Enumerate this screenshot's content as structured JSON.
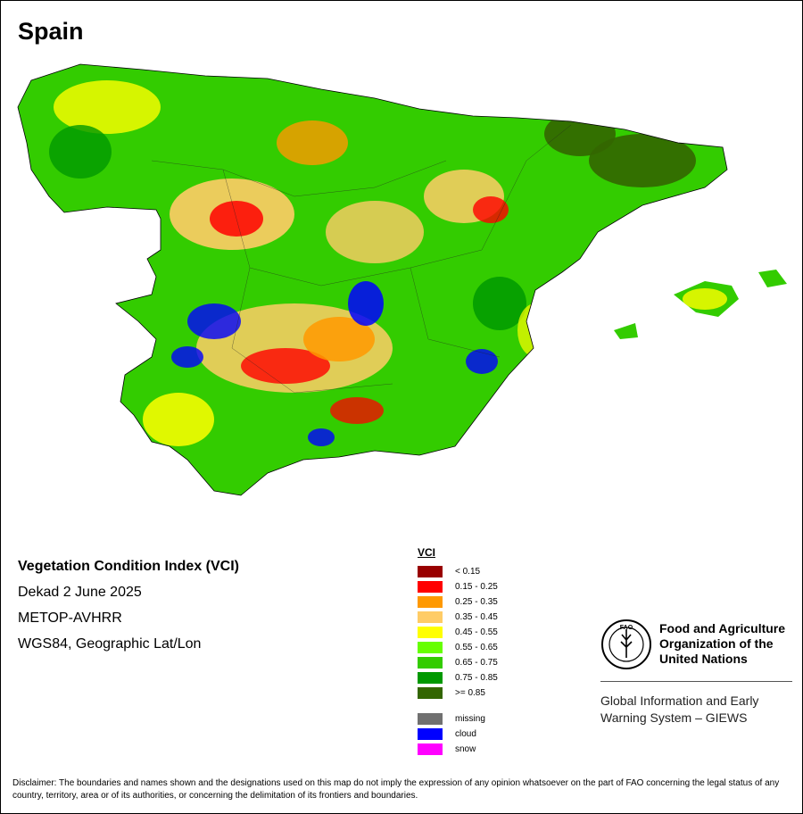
{
  "map": {
    "country": "Spain",
    "product": "Vegetation Condition Index (VCI)",
    "period": "Dekad 2 June 2025",
    "sensor": "METOP-AVHRR",
    "projection": "WGS84, Geographic Lat/Lon"
  },
  "legend": {
    "title": "VCI",
    "classes": [
      {
        "label": "< 0.15",
        "color": "#990000"
      },
      {
        "label": "0.15 - 0.25",
        "color": "#ff0000"
      },
      {
        "label": "0.25 - 0.35",
        "color": "#ff9900"
      },
      {
        "label": "0.35 - 0.45",
        "color": "#ffcc66"
      },
      {
        "label": "0.45 - 0.55",
        "color": "#ffff00"
      },
      {
        "label": "0.55 - 0.65",
        "color": "#66ff00"
      },
      {
        "label": "0.65 - 0.75",
        "color": "#33cc00"
      },
      {
        "label": "0.75 - 0.85",
        "color": "#009900"
      },
      {
        "label": ">= 0.85",
        "color": "#336600"
      }
    ],
    "special": [
      {
        "label": "missing",
        "color": "#707070"
      },
      {
        "label": "cloud",
        "color": "#0000ff"
      },
      {
        "label": "snow",
        "color": "#ff00ff"
      }
    ]
  },
  "org": {
    "line1": "Food and Agriculture",
    "line2": "Organization of the",
    "line3": "United Nations",
    "logo_text": "FAO",
    "logo_motto": "FIAT PANIS",
    "system_line1": "Global Information and Early",
    "system_line2": "Warning System – GIEWS"
  },
  "disclaimer": "Disclaimer: The boundaries and names shown and the designations used on this map do not imply the expression of any opinion whatsoever on the part of FAO concerning the legal status of any country, territory, area or of its authorities, or concerning the delimitation of its frontiers and boundaries."
}
